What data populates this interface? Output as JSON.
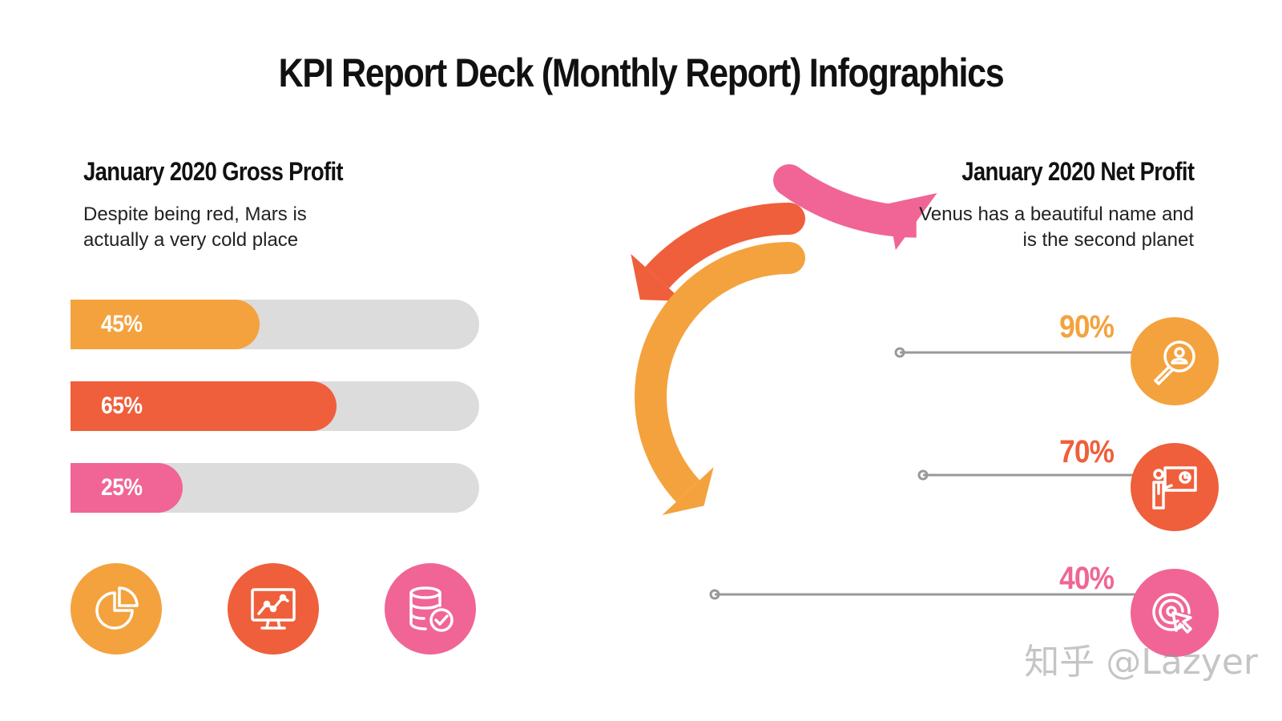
{
  "title": "KPI Report Deck (Monthly Report) Infographics",
  "colors": {
    "orange": "#f4a23e",
    "red": "#ef5f3b",
    "pink": "#f06595",
    "track": "#dcdcdc",
    "connector": "#999999"
  },
  "left": {
    "heading": "January 2020 Gross Profit",
    "description": "Despite being red, Mars is actually a very cold place",
    "bars": [
      {
        "label": "45%",
        "value": 45,
        "color": "#f4a23e"
      },
      {
        "label": "65%",
        "value": 65,
        "color": "#ef5f3b"
      },
      {
        "label": "25%",
        "value": 25,
        "color": "#f06595"
      }
    ],
    "icons": [
      {
        "name": "pie-chart-icon",
        "color": "#f4a23e"
      },
      {
        "name": "line-chart-monitor-icon",
        "color": "#ef5f3b"
      },
      {
        "name": "database-check-icon",
        "color": "#f06595"
      }
    ]
  },
  "right": {
    "heading": "January 2020 Net Profit",
    "description": "Venus has a beautiful name and is the second planet",
    "items": [
      {
        "label": "90%",
        "value": 90,
        "color": "#f4a23e",
        "icon": "search-user-icon"
      },
      {
        "label": "70%",
        "value": 70,
        "color": "#ef5f3b",
        "icon": "presentation-icon"
      },
      {
        "label": "40%",
        "value": 40,
        "color": "#f06595",
        "icon": "target-click-icon"
      }
    ]
  },
  "watermark": "知乎 @Lazyer"
}
